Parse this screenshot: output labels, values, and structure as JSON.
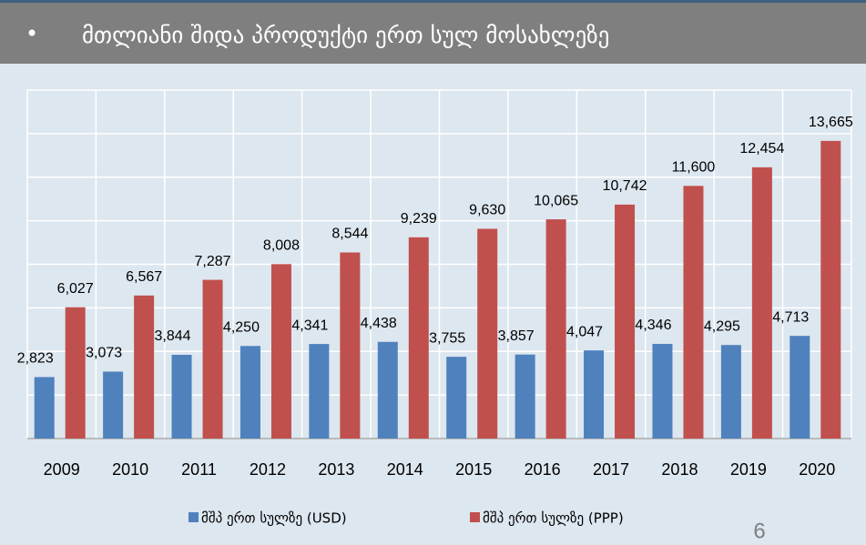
{
  "chart_data": {
    "type": "bar",
    "title": "მთლიანი შიდა პროდუქტი ერთ სულ მოსახლეზე",
    "categories": [
      "2009",
      "2010",
      "2011",
      "2012",
      "2013",
      "2014",
      "2015",
      "2016",
      "2017",
      "2018",
      "2019",
      "2020"
    ],
    "series": [
      {
        "name": "მშპ ერთ სულზე (USD)",
        "color": "#4f81bd",
        "values": [
          2823,
          3073,
          3844,
          4250,
          4341,
          4438,
          3755,
          3857,
          4047,
          4346,
          4295,
          4713
        ],
        "value_labels": [
          "2,823",
          "3,073",
          "3,844",
          "4,250",
          "4,341",
          "4,438",
          "3,755",
          "3,857",
          "4,047",
          "4,346",
          "4,295",
          "4,713"
        ]
      },
      {
        "name": "მშპ ერთ სულზე (PPP)",
        "color": "#c0504d",
        "values": [
          6027,
          6567,
          7287,
          8008,
          8544,
          9239,
          9630,
          10065,
          10742,
          11600,
          12454,
          13665
        ],
        "value_labels": [
          "6,027",
          "6,567",
          "7,287",
          "8,008",
          "8,544",
          "9,239",
          "9,630",
          "10,065",
          "10,742",
          "11,600",
          "12,454",
          "13,665"
        ]
      }
    ],
    "ylim": [
      0,
      16000
    ],
    "yticks": [
      0,
      2000,
      4000,
      6000,
      8000,
      10000,
      12000,
      14000,
      16000
    ],
    "grid": true,
    "legend": "bottom"
  },
  "slide_number": "6"
}
